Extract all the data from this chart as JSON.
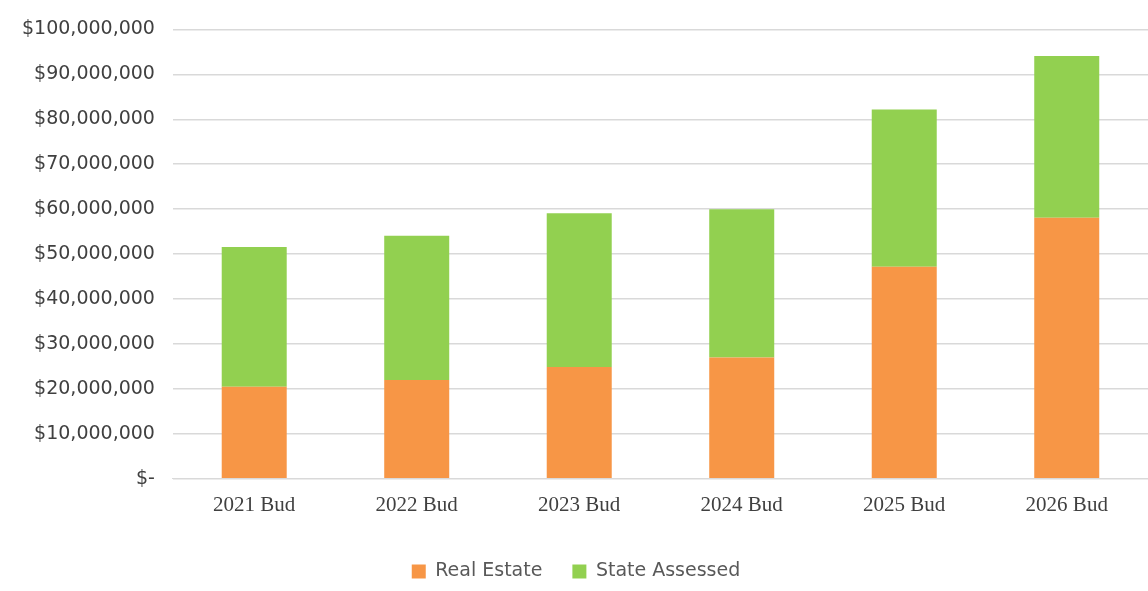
{
  "chart_data": {
    "type": "bar",
    "stacked": true,
    "categories": [
      "2021 Bud",
      "2022 Bud",
      "2023 Bud",
      "2024 Bud",
      "2025 Bud",
      "2026 Bud"
    ],
    "series": [
      {
        "name": "Real Estate",
        "color": "#f79646",
        "values": [
          20500000.0,
          22000000.0,
          24900000.0,
          27000000.0,
          47200000.0,
          58100000.0
        ]
      },
      {
        "name": "State Assessed",
        "color": "#92d050",
        "values": [
          31100000.0,
          32100000.0,
          34200000.0,
          33000000.0,
          35000000.0,
          36000000.0
        ]
      }
    ],
    "ylim": [
      0,
      100000000
    ],
    "yticks": [
      {
        "value": 0,
        "label": "$-"
      },
      {
        "value": 10000000,
        "label": "$10,000,000"
      },
      {
        "value": 20000000,
        "label": "$20,000,000"
      },
      {
        "value": 30000000,
        "label": "$30,000,000"
      },
      {
        "value": 40000000,
        "label": "$40,000,000"
      },
      {
        "value": 50000000,
        "label": "$50,000,000"
      },
      {
        "value": 60000000,
        "label": "$60,000,000"
      },
      {
        "value": 70000000,
        "label": "$70,000,000"
      },
      {
        "value": 80000000,
        "label": "$80,000,000"
      },
      {
        "value": 90000000,
        "label": "$90,000,000"
      },
      {
        "value": 100000000,
        "label": "$100,000,000"
      }
    ],
    "grid": "y",
    "legend": "bottom"
  }
}
